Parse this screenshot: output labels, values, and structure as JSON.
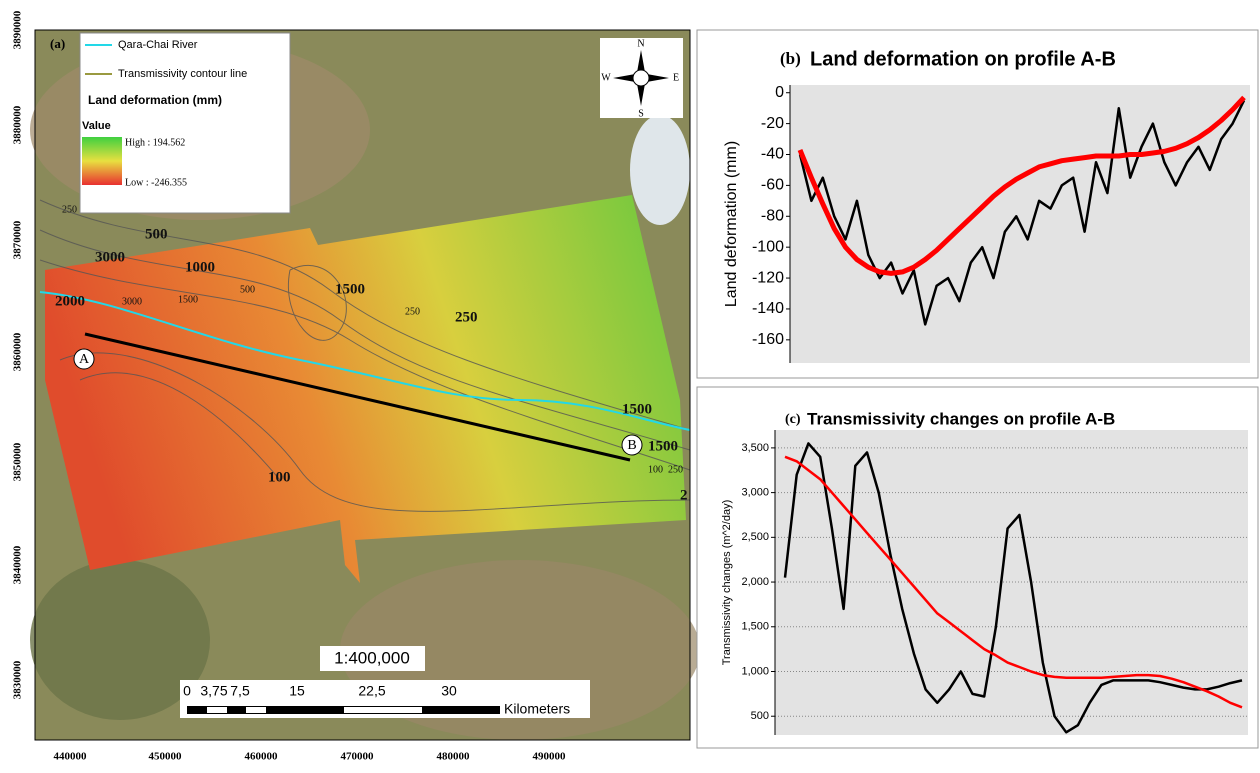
{
  "map": {
    "panel_label": "(a)",
    "legend": {
      "items": [
        "Qara-Chai River",
        "Transmissivity contour line"
      ],
      "title": "Land deformation (mm)",
      "value_heading": "Value",
      "high": "High : 194.562",
      "low": "Low : -246.355"
    },
    "compass": [
      "N",
      "S",
      "W",
      "E"
    ],
    "contour_labels": [
      "250",
      "3000",
      "500",
      "1000",
      "3000",
      "1500",
      "500",
      "1500",
      "2000",
      "250",
      "250",
      "1500",
      "1500",
      "100",
      "250",
      "2",
      "100"
    ],
    "points": [
      "A",
      "B"
    ],
    "scale": "1:400,000",
    "scale_bar": {
      "labels": [
        "0",
        "3,75",
        "7,5",
        "15",
        "22,5",
        "30"
      ],
      "unit": "Kilometers"
    },
    "y_labels": [
      3890000,
      3880000,
      3870000,
      3860000,
      3850000,
      3840000,
      3830000
    ],
    "x_labels": [
      440000,
      450000,
      460000,
      470000,
      480000,
      490000
    ]
  },
  "chart_data": [
    {
      "type": "line",
      "panel_label": "(b)",
      "title": "Land deformation on profile A-B",
      "y_label": "Land deformation (mm)",
      "ylim": [
        -175,
        5
      ],
      "yticks": [
        0,
        -20,
        -40,
        -60,
        -80,
        -100,
        -120,
        -140,
        -160
      ],
      "grid": false,
      "series": [
        {
          "color": "#000000",
          "values": [
            -40,
            -70,
            -55,
            -80,
            -95,
            -70,
            -105,
            -120,
            -110,
            -130,
            -115,
            -150,
            -125,
            -120,
            -135,
            -110,
            -100,
            -120,
            -90,
            -80,
            -95,
            -70,
            -75,
            -60,
            -55,
            -90,
            -45,
            -65,
            -10,
            -55,
            -35,
            -20,
            -45,
            -60,
            -45,
            -35,
            -50,
            -30,
            -20,
            -5
          ]
        },
        {
          "color": "#ff0000",
          "values": [
            -37,
            -55,
            -72,
            -88,
            -100,
            -108,
            -113,
            -116,
            -117,
            -116,
            -113,
            -108,
            -102,
            -95,
            -88,
            -81,
            -74,
            -67,
            -61,
            -56,
            -52,
            -48,
            -46,
            -44,
            -43,
            -42,
            -41,
            -41,
            -41,
            -40,
            -40,
            -39,
            -38,
            -36,
            -33,
            -29,
            -24,
            -18,
            -11,
            -3
          ]
        }
      ]
    },
    {
      "type": "line",
      "panel_label": "(c)",
      "title": "Transmissivity changes on profile A-B",
      "y_label": "Transmissivity changes (m^2/day)",
      "ylim": [
        290,
        3700
      ],
      "yticks": [
        {
          "value": 500,
          "label": "500"
        },
        {
          "value": 1000,
          "label": "1,000"
        },
        {
          "value": 1500,
          "label": "1,500"
        },
        {
          "value": 2000,
          "label": "2,000"
        },
        {
          "value": 2500,
          "label": "2,500"
        },
        {
          "value": 3000,
          "label": "3,000"
        },
        {
          "value": 3500,
          "label": "3,500"
        }
      ],
      "grid": true,
      "series": [
        {
          "color": "#000000",
          "values": [
            2050,
            3200,
            3550,
            3400,
            2600,
            1700,
            3300,
            3450,
            3000,
            2300,
            1700,
            1200,
            800,
            650,
            800,
            1000,
            750,
            720,
            1500,
            2600,
            2750,
            2000,
            1100,
            500,
            320,
            400,
            650,
            850,
            900,
            900,
            900,
            900,
            880,
            850,
            820,
            800,
            800,
            830,
            870,
            900
          ]
        },
        {
          "color": "#ff0000",
          "values": [
            3400,
            3350,
            3250,
            3150,
            3000,
            2850,
            2700,
            2550,
            2400,
            2250,
            2100,
            1950,
            1800,
            1650,
            1550,
            1450,
            1350,
            1250,
            1180,
            1100,
            1050,
            1000,
            960,
            940,
            930,
            930,
            930,
            930,
            940,
            950,
            960,
            960,
            950,
            920,
            880,
            830,
            780,
            720,
            650,
            600
          ]
        }
      ]
    }
  ]
}
